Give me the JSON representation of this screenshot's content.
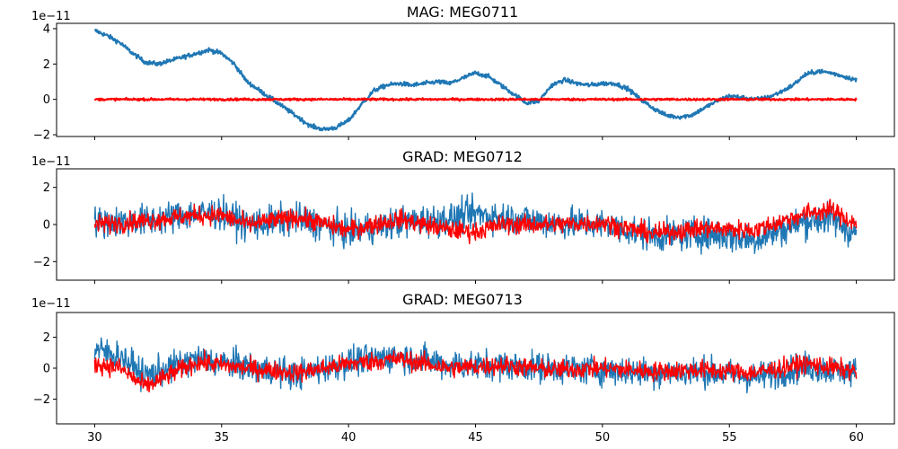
{
  "chart_data": {
    "type": "line",
    "shared_x": true,
    "xlim": [
      28.5,
      61.5
    ],
    "xticks": [
      30,
      35,
      40,
      45,
      50,
      55,
      60
    ],
    "series_colors": [
      "#1f77b4",
      "#ff0000"
    ],
    "panels": [
      {
        "title": "MAG: MEG0711",
        "offset_text": "1e−11",
        "ylim": [
          -2.1,
          4.3
        ],
        "yticks": [
          -2,
          0,
          2,
          4
        ],
        "series": [
          {
            "color": "#1f77b4",
            "noise": 0.12,
            "x": [
              30,
              30.5,
              31,
              31.5,
              32,
              32.5,
              33,
              33.5,
              34,
              34.5,
              35,
              35.5,
              36,
              36.5,
              37,
              37.5,
              38,
              38.5,
              39,
              39.5,
              40,
              40.5,
              41,
              41.5,
              42,
              42.5,
              43,
              43.5,
              44,
              44.5,
              45,
              45.5,
              46,
              46.5,
              47,
              47.5,
              48,
              48.5,
              49,
              49.5,
              50,
              50.5,
              51,
              51.5,
              52,
              52.5,
              53,
              53.5,
              54,
              54.5,
              55,
              55.5,
              56,
              56.5,
              57,
              57.5,
              58,
              58.5,
              59,
              59.5,
              60
            ],
            "y": [
              3.9,
              3.6,
              3.2,
              2.6,
              2.1,
              2.0,
              2.2,
              2.4,
              2.6,
              2.8,
              2.6,
              2.0,
              1.0,
              0.5,
              0.0,
              -0.5,
              -1.0,
              -1.5,
              -1.7,
              -1.6,
              -1.2,
              -0.3,
              0.5,
              0.8,
              0.9,
              0.8,
              0.9,
              1.0,
              0.9,
              1.2,
              1.5,
              1.3,
              0.8,
              0.3,
              -0.2,
              -0.1,
              0.8,
              1.1,
              0.9,
              0.8,
              0.9,
              0.9,
              0.6,
              0.0,
              -0.5,
              -0.9,
              -1.0,
              -0.9,
              -0.5,
              -0.1,
              0.2,
              0.1,
              0.0,
              0.1,
              0.4,
              0.8,
              1.4,
              1.6,
              1.5,
              1.3,
              1.1
            ]
          },
          {
            "color": "#ff0000",
            "noise": 0.06,
            "x": [
              30,
              60
            ],
            "y": [
              0.0,
              0.0
            ]
          }
        ]
      },
      {
        "title": "GRAD: MEG0712",
        "offset_text": "1e−11",
        "ylim": [
          -3.0,
          3.0
        ],
        "yticks": [
          -2,
          0,
          2
        ],
        "series": [
          {
            "color": "#1f77b4",
            "noise": 0.85,
            "x": [
              30,
              32,
              34,
              35,
              36,
              38,
              40,
              42,
              44,
              45,
              46,
              48,
              50,
              52,
              54,
              56,
              58,
              59,
              60
            ],
            "y": [
              0.1,
              0.2,
              0.6,
              0.6,
              0.0,
              0.3,
              -0.4,
              0.1,
              0.3,
              0.6,
              0.4,
              0.1,
              0.0,
              -0.6,
              -0.5,
              -0.8,
              0.2,
              0.3,
              -0.5
            ]
          },
          {
            "color": "#ff0000",
            "noise": 0.5,
            "x": [
              30,
              32,
              34,
              35,
              36,
              38,
              40,
              42,
              44,
              45,
              46,
              48,
              50,
              52,
              54,
              56,
              58,
              59,
              60
            ],
            "y": [
              0.0,
              0.2,
              0.5,
              0.5,
              0.0,
              0.4,
              -0.3,
              0.3,
              -0.3,
              -0.4,
              0.0,
              0.0,
              0.1,
              -0.5,
              -0.2,
              -0.3,
              0.6,
              0.8,
              0.0
            ]
          }
        ]
      },
      {
        "title": "GRAD: MEG0713",
        "offset_text": "1e−11",
        "ylim": [
          -3.6,
          3.6
        ],
        "yticks": [
          -2,
          0,
          2
        ],
        "series": [
          {
            "color": "#1f77b4",
            "noise": 0.95,
            "x": [
              30,
              31,
              32,
              34,
              36,
              38,
              40,
              42,
              44,
              46,
              48,
              50,
              52,
              54,
              56,
              58,
              60
            ],
            "y": [
              1.2,
              0.8,
              -0.5,
              0.6,
              0.1,
              -0.4,
              0.4,
              0.8,
              0.2,
              0.2,
              0.0,
              -0.1,
              -0.3,
              -0.2,
              -0.6,
              0.1,
              -0.3
            ]
          },
          {
            "color": "#ff0000",
            "noise": 0.6,
            "x": [
              30,
              31,
              32,
              34,
              36,
              38,
              40,
              42,
              44,
              46,
              48,
              50,
              52,
              54,
              56,
              58,
              60
            ],
            "y": [
              0.3,
              0.0,
              -1.2,
              0.4,
              0.0,
              -0.3,
              0.3,
              0.6,
              0.0,
              0.2,
              -0.1,
              0.0,
              -0.2,
              -0.1,
              -0.3,
              0.3,
              -0.2
            ]
          }
        ]
      }
    ]
  }
}
